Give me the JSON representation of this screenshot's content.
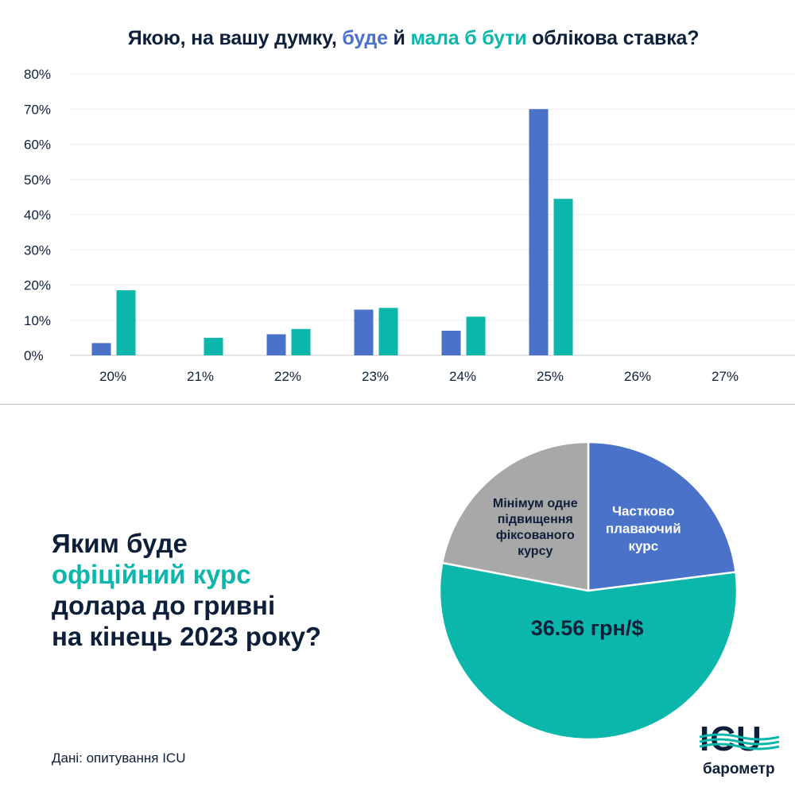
{
  "bar_title": {
    "part1": "Якою, на вашу думку, ",
    "part2": "буде",
    "part3": " й ",
    "part4": "мала б бути",
    "part5": " облікова ставка?"
  },
  "pie_question": {
    "line1": "Яким буде",
    "line2": "офіційний курс",
    "line3": "долара до гривні",
    "line4": "на кінець 2023 року?"
  },
  "source": "Дані: опитування ICU",
  "logo": {
    "text": "ICU",
    "subtitle": "барометр"
  },
  "colors": {
    "blue": "#4a72c9",
    "teal": "#0bb7ab",
    "gray": "#a8a8a8",
    "dark": "#0e1f3a"
  },
  "chart_data": [
    {
      "type": "bar",
      "title": "Якою, на вашу думку, буде й мала б бути облікова ставка?",
      "categories": [
        "20%",
        "21%",
        "22%",
        "23%",
        "24%",
        "25%",
        "26%",
        "27%"
      ],
      "series": [
        {
          "name": "буде",
          "color": "#4a72c9",
          "values": [
            3.5,
            0,
            6,
            13,
            7,
            70,
            0,
            0
          ]
        },
        {
          "name": "мала б бути",
          "color": "#0bb7ab",
          "values": [
            18.5,
            5,
            7.5,
            13.5,
            11,
            44.5,
            0,
            0
          ]
        }
      ],
      "ylim": [
        0,
        80
      ],
      "yticks": [
        0,
        10,
        20,
        30,
        40,
        50,
        60,
        70,
        80
      ],
      "ytick_labels": [
        "0%",
        "10%",
        "20%",
        "30%",
        "40%",
        "50%",
        "60%",
        "70%",
        "80%"
      ],
      "grid": true
    },
    {
      "type": "pie",
      "title": "Яким буде офіційний курс долара до гривні на кінець 2023 року?",
      "slices": [
        {
          "label": [
            "Частково",
            "плаваючий",
            "курс"
          ],
          "value": 23,
          "color": "#4a72c9"
        },
        {
          "label": [
            "36.56 грн/$"
          ],
          "value": 55,
          "color": "#0bb7ab"
        },
        {
          "label": [
            "Мінімум одне",
            "підвищення",
            "фіксованого",
            "курсу"
          ],
          "value": 22,
          "color": "#a8a8a8"
        }
      ]
    }
  ]
}
